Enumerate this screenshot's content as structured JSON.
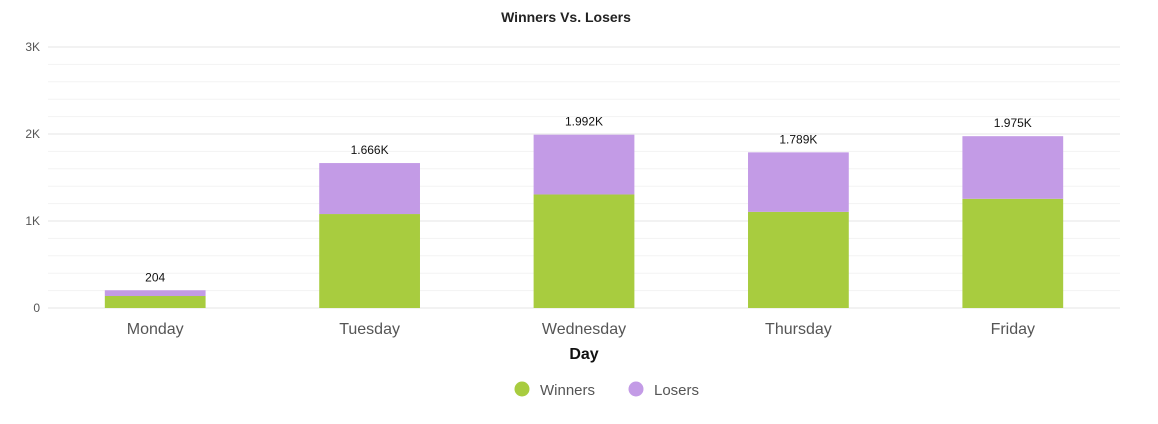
{
  "chart_data": {
    "type": "bar",
    "stacked": true,
    "title": "Winners Vs. Losers",
    "xlabel": "Day",
    "ylabel": "",
    "categories": [
      "Monday",
      "Tuesday",
      "Wednesday",
      "Thursday",
      "Friday"
    ],
    "ylim": [
      0,
      3000
    ],
    "yticks": [
      0,
      1000,
      2000,
      3000
    ],
    "ytick_labels": [
      "0",
      "1K",
      "2K",
      "3K"
    ],
    "series": [
      {
        "name": "Winners",
        "color": "#a8cc3f",
        "values": [
          138,
          1080,
          1305,
          1105,
          1255
        ]
      },
      {
        "name": "Losers",
        "color": "#c39be6",
        "values": [
          66,
          586,
          687,
          684,
          720
        ]
      }
    ],
    "total_labels": [
      "204",
      "1.666K",
      "1.992K",
      "1.789K",
      "1.975K"
    ],
    "grid": true,
    "legend_position": "bottom"
  }
}
